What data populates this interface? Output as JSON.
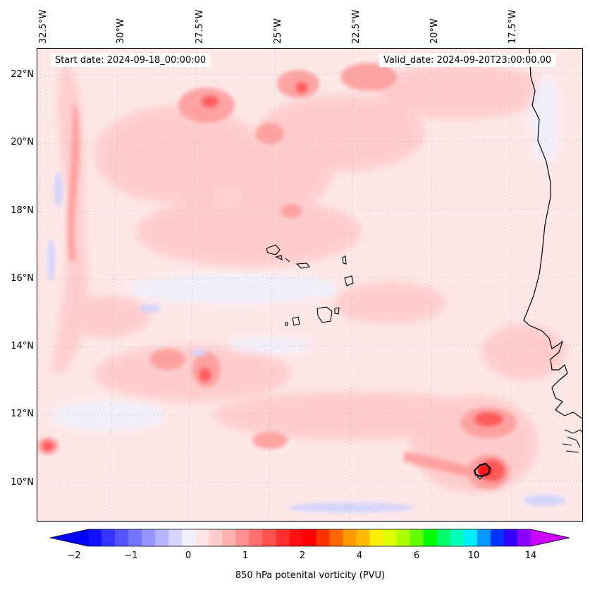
{
  "map": {
    "start_date_text": "Start date: 2024-09-18_00:00:00",
    "valid_date_text": "Valid_date: 2024-09-20T23:00:00.00",
    "lon_labels": [
      "32.5°W",
      "30°W",
      "27.5°W",
      "25°W",
      "22.5°W",
      "20°W",
      "17.5°W"
    ],
    "lat_labels": [
      "22°N",
      "20°N",
      "18°N",
      "16°N",
      "14°N",
      "12°N",
      "10°N"
    ],
    "extent": {
      "lon_min": -32.7,
      "lon_max": -15.2,
      "lat_min": 8.9,
      "lat_max": 22.8
    },
    "field": "850 hPa potential vorticity",
    "coastline_color": "#000000"
  },
  "colorbar": {
    "label": "850 hPa potenital vorticity (PVU)",
    "tick_labels": [
      "−2",
      "−1",
      "0",
      "1",
      "2",
      "4",
      "6",
      "10",
      "14"
    ],
    "colors": [
      "#1010ff",
      "#3535ff",
      "#5555ff",
      "#7575ff",
      "#9595ff",
      "#b5b5ff",
      "#d5d5ff",
      "#f0f0ff",
      "#ffe6e6",
      "#ffcccc",
      "#ffb0b0",
      "#ff9090",
      "#ff7070",
      "#ff5050",
      "#ff3030",
      "#ff1010",
      "#ff0000",
      "#ff3300",
      "#ff6600",
      "#ff9900",
      "#ffbb00",
      "#ffee00",
      "#ddff00",
      "#aaff00",
      "#66ff00",
      "#00ff00",
      "#00ff66",
      "#00ffbb",
      "#00eeff",
      "#0099ff",
      "#0033ff",
      "#3300ff",
      "#8800ff"
    ],
    "under_color": "#0000ff",
    "over_color": "#cc00ff"
  }
}
